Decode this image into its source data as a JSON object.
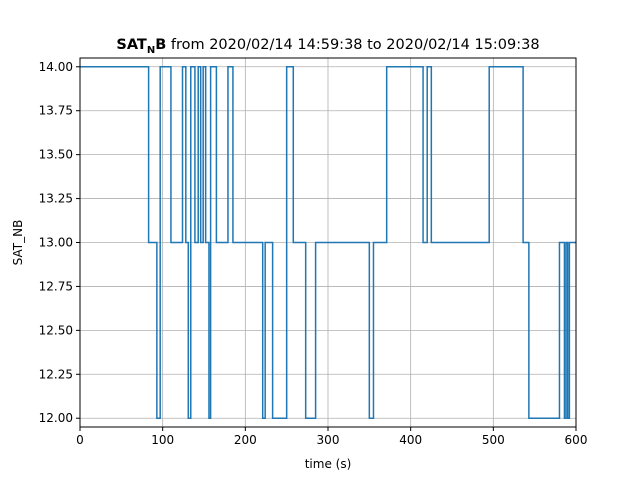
{
  "chart_data": {
    "type": "line",
    "drawstyle": "steps-post",
    "title_main": "SAT",
    "title_sub": "N",
    "title_main2": "B",
    "title_rest": " from 2020/02/14 14:59:38 to 2020/02/14 15:09:38",
    "xlabel": "time (s)",
    "ylabel": "SAT_NB",
    "xlim": [
      0,
      600
    ],
    "ylim": [
      11.95,
      14.05
    ],
    "xticks": [
      0,
      100,
      200,
      300,
      400,
      500,
      600
    ],
    "xtick_labels": [
      "0",
      "100",
      "200",
      "300",
      "400",
      "500",
      "600"
    ],
    "yticks": [
      12.0,
      12.25,
      12.5,
      12.75,
      13.0,
      13.25,
      13.5,
      13.75,
      14.0
    ],
    "ytick_labels": [
      "12.00",
      "12.25",
      "12.50",
      "12.75",
      "13.00",
      "13.25",
      "13.50",
      "13.75",
      "14.00"
    ],
    "grid": true,
    "line_color": "#1f77b4",
    "series": [
      {
        "x": [
          0,
          83,
          93,
          97,
          110,
          124,
          128,
          131,
          134,
          139,
          143,
          146,
          149,
          152,
          156,
          158,
          162,
          165,
          179,
          185,
          221,
          224,
          233,
          250,
          258,
          273,
          285,
          350,
          355,
          371,
          415,
          420,
          425,
          495,
          536,
          543,
          580,
          586,
          588,
          590,
          592,
          600
        ],
        "y": [
          14,
          13,
          12,
          14,
          13,
          14,
          13,
          12,
          14,
          13,
          14,
          13,
          14,
          13,
          12,
          14,
          14,
          13,
          14,
          13,
          12,
          13,
          12,
          14,
          13,
          12,
          13,
          12,
          13,
          14,
          13,
          14,
          13,
          14,
          13,
          12,
          13,
          12,
          13,
          12,
          13,
          13
        ]
      }
    ]
  }
}
